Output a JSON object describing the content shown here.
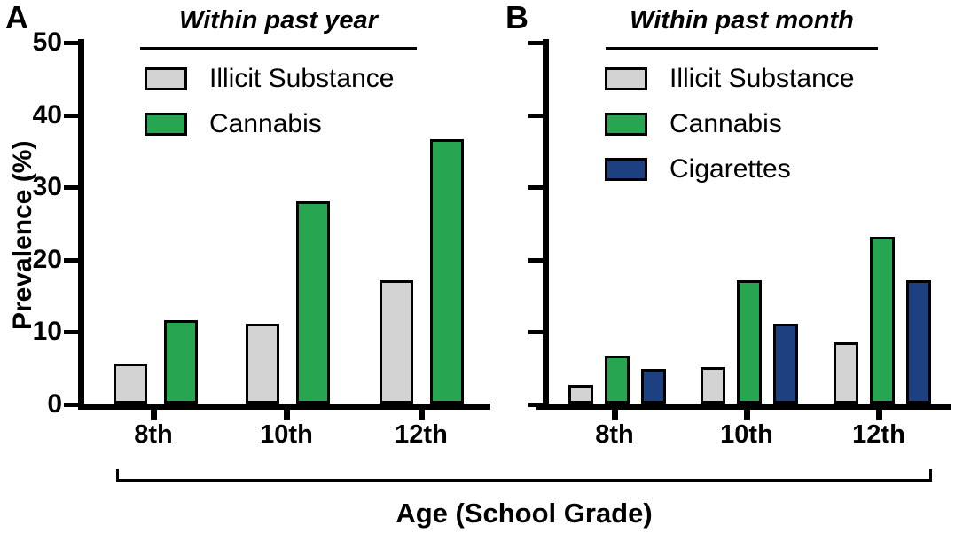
{
  "shared_x_label": "Age (School Grade)",
  "chart_data": [
    {
      "type": "bar",
      "panel_label": "A",
      "title": "Within past year",
      "categories": [
        "8th",
        "10th",
        "12th"
      ],
      "series": [
        {
          "name": "Illicit Substance",
          "color": "#d3d3d3",
          "values": [
            5.5,
            11,
            17
          ]
        },
        {
          "name": "Cannabis",
          "color": "#28a550",
          "values": [
            11.5,
            28,
            36.5
          ]
        }
      ],
      "ylabel": "Prevalence (%)",
      "yticks": [
        0,
        10,
        20,
        30,
        40,
        50
      ],
      "ylim": [
        0,
        50
      ],
      "xlabel": "Age (School Grade)",
      "grid": false,
      "legend_position": "top-inside-left"
    },
    {
      "type": "bar",
      "panel_label": "B",
      "title": "Within past month",
      "categories": [
        "8th",
        "10th",
        "12th"
      ],
      "series": [
        {
          "name": "Illicit Substance",
          "color": "#d3d3d3",
          "values": [
            2.6,
            5,
            8.5
          ]
        },
        {
          "name": "Cannabis",
          "color": "#28a550",
          "values": [
            6.6,
            17,
            23
          ]
        },
        {
          "name": "Cigarettes",
          "color": "#1c4080",
          "values": [
            4.8,
            11,
            17
          ]
        }
      ],
      "ylabel": "Prevalence (%)",
      "yticks": [
        0,
        10,
        20,
        30,
        40,
        50
      ],
      "ylim": [
        0,
        50
      ],
      "xlabel": "Age (School Grade)",
      "grid": false,
      "legend_position": "top-inside-left"
    }
  ],
  "colors": {
    "illicit_substance": "#d3d3d3",
    "cannabis": "#28a550",
    "cigarettes": "#1c4080",
    "axis": "#000000",
    "background": "#ffffff"
  }
}
